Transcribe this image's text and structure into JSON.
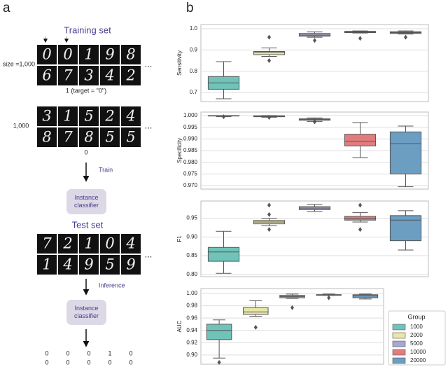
{
  "panel_a": {
    "label": "a",
    "training_title": "Training set",
    "size_label": "size =1,000",
    "bag1_digits": [
      [
        "0",
        "0",
        "1",
        "9",
        "8"
      ],
      [
        "6",
        "7",
        "3",
        "4",
        "2"
      ]
    ],
    "bag1_label": "1 (target  = \"0\")",
    "bag2_size": "1,000",
    "bag2_digits": [
      [
        "3",
        "1",
        "5",
        "2",
        "4"
      ],
      [
        "8",
        "7",
        "8",
        "5",
        "5"
      ]
    ],
    "bag2_label": "0",
    "ellipsis": "...",
    "train_label": "Train",
    "classifier_label": "Instance classifier",
    "test_title": "Test set",
    "test_digits": [
      [
        "7",
        "2",
        "1",
        "0",
        "4"
      ],
      [
        "1",
        "4",
        "9",
        "5",
        "9"
      ]
    ],
    "inference_label": "Inference",
    "outputs": [
      [
        "0",
        "0",
        "0",
        "1",
        "0"
      ],
      [
        "0",
        "0",
        "0",
        "0",
        "0"
      ]
    ]
  },
  "panel_b_label": "b",
  "legend": {
    "title": "Group",
    "items": [
      {
        "name": "1000",
        "color": "#6fc3b8"
      },
      {
        "name": "2000",
        "color": "#e9e7a8"
      },
      {
        "name": "5000",
        "color": "#a6a8d0"
      },
      {
        "name": "10000",
        "color": "#e27d7d"
      },
      {
        "name": "20000",
        "color": "#6c9ec2"
      }
    ]
  },
  "chart_data": [
    {
      "type": "box",
      "ylabel": "Sensitivity",
      "ylim": [
        0.657,
        1.02
      ],
      "grid": true,
      "yticks": [
        0.7,
        0.8,
        0.9,
        {
          "value": 1,
          "label": "1.0"
        }
      ],
      "boxes": [
        {
          "min": 0.67,
          "q1": 0.715,
          "median": 0.745,
          "q3": 0.775,
          "max": 0.845,
          "outliers": []
        },
        {
          "min": 0.87,
          "q1": 0.878,
          "median": 0.888,
          "q3": 0.893,
          "max": 0.91,
          "outliers": [
            0.96,
            0.85
          ]
        },
        {
          "min": 0.96,
          "q1": 0.965,
          "median": 0.97,
          "q3": 0.978,
          "max": 0.985,
          "outliers": [
            0.945
          ]
        },
        {
          "min": 0.98,
          "q1": 0.982,
          "median": 0.985,
          "q3": 0.988,
          "max": 0.99,
          "outliers": [
            0.955
          ]
        },
        {
          "min": 0.975,
          "q1": 0.978,
          "median": 0.982,
          "q3": 0.986,
          "max": 0.99,
          "outliers": [
            0.96
          ]
        }
      ]
    },
    {
      "type": "box",
      "ylabel": "Specificity",
      "ylim": [
        0.9685,
        1.0015
      ],
      "grid": true,
      "yticks": [
        {
          "value": 0.97,
          "label": "0.970"
        },
        0.975,
        {
          "value": 0.98,
          "label": "0.980"
        },
        0.985,
        {
          "value": 0.99,
          "label": "0.990"
        },
        0.995,
        {
          "value": 1,
          "label": "1.000"
        }
      ],
      "boxes": [
        {
          "min": 0.9995,
          "q1": 0.9998,
          "median": 0.9999,
          "q3": 1,
          "max": 1,
          "outliers": [
            0.9995
          ]
        },
        {
          "min": 0.9993,
          "q1": 0.9995,
          "median": 0.9997,
          "q3": 0.9999,
          "max": 1,
          "outliers": [
            0.9992
          ]
        },
        {
          "min": 0.9975,
          "q1": 0.998,
          "median": 0.9983,
          "q3": 0.9986,
          "max": 0.999,
          "outliers": [
            0.9973
          ]
        },
        {
          "min": 0.982,
          "q1": 0.987,
          "median": 0.989,
          "q3": 0.992,
          "max": 0.997,
          "outliers": []
        },
        {
          "min": 0.9695,
          "q1": 0.975,
          "median": 0.988,
          "q3": 0.993,
          "max": 0.9955,
          "outliers": []
        }
      ]
    },
    {
      "type": "box",
      "ylabel": "F1",
      "ylim": [
        0.794,
        0.996
      ],
      "grid": true,
      "yticks": [
        {
          "value": 0.8,
          "label": "0.80"
        },
        0.85,
        {
          "value": 0.9,
          "label": "0.90"
        },
        0.95
      ],
      "boxes": [
        {
          "min": 0.803,
          "q1": 0.835,
          "median": 0.86,
          "q3": 0.872,
          "max": 0.915,
          "outliers": []
        },
        {
          "min": 0.93,
          "q1": 0.935,
          "median": 0.94,
          "q3": 0.944,
          "max": 0.95,
          "outliers": [
            0.985,
            0.92,
            0.96
          ]
        },
        {
          "min": 0.968,
          "q1": 0.973,
          "median": 0.977,
          "q3": 0.981,
          "max": 0.987,
          "outliers": []
        },
        {
          "min": 0.94,
          "q1": 0.945,
          "median": 0.95,
          "q3": 0.955,
          "max": 0.965,
          "outliers": [
            0.985,
            0.92
          ]
        },
        {
          "min": 0.865,
          "q1": 0.89,
          "median": 0.945,
          "q3": 0.957,
          "max": 0.97,
          "outliers": []
        }
      ]
    },
    {
      "type": "box",
      "ylabel": "AUC",
      "ylim": [
        0.885,
        1.008
      ],
      "grid": true,
      "yticks": [
        {
          "value": 0.9,
          "label": "0.90"
        },
        0.92,
        0.94,
        0.96,
        0.98,
        {
          "value": 1,
          "label": "1.00"
        }
      ],
      "boxes": [
        {
          "min": 0.895,
          "q1": 0.925,
          "median": 0.94,
          "q3": 0.95,
          "max": 0.957,
          "outliers": [
            0.888
          ]
        },
        {
          "min": 0.963,
          "q1": 0.966,
          "median": 0.97,
          "q3": 0.977,
          "max": 0.988,
          "outliers": [
            0.945
          ]
        },
        {
          "min": 0.992,
          "q1": 0.993,
          "median": 0.995,
          "q3": 0.997,
          "max": 0.999,
          "outliers": [
            0.977
          ]
        },
        {
          "min": 0.997,
          "q1": 0.997,
          "median": 0.998,
          "q3": 0.998,
          "max": 0.999,
          "outliers": [
            0.993
          ]
        },
        {
          "min": 0.991,
          "q1": 0.993,
          "median": 0.996,
          "q3": 0.998,
          "max": 0.999,
          "outliers": []
        }
      ]
    }
  ]
}
